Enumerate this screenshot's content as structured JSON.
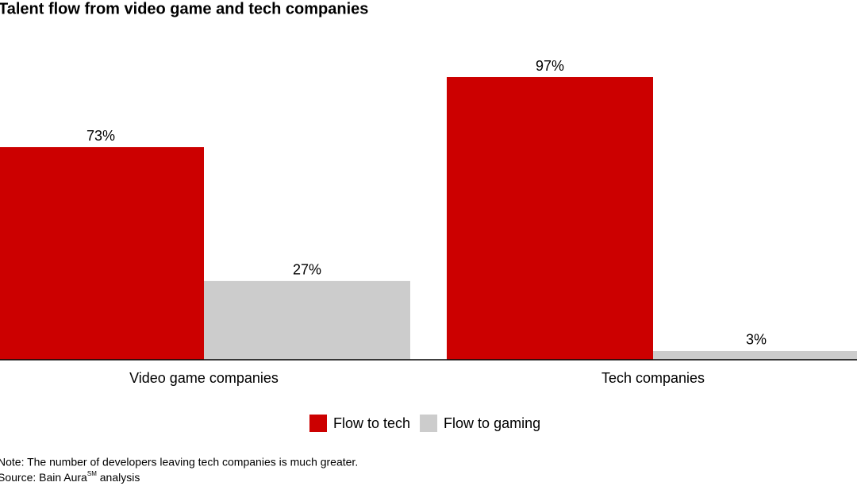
{
  "chart_data": {
    "type": "bar",
    "title": "Talent flow from video game and tech companies",
    "categories": [
      "Video game companies",
      "Tech companies"
    ],
    "series": [
      {
        "name": "Flow to tech",
        "color": "#cc0000",
        "values": [
          73,
          97
        ],
        "value_labels": [
          "73%",
          "97%"
        ]
      },
      {
        "name": "Flow to gaming",
        "color": "#cccccc",
        "values": [
          27,
          3
        ],
        "value_labels": [
          "27%",
          "3%"
        ]
      }
    ],
    "ylim": [
      0,
      100
    ],
    "note": "Note: The number of developers leaving tech companies is much greater.",
    "source": {
      "prefix": "Source: Bain Aura",
      "superscript": "SM",
      "suffix": " analysis"
    }
  }
}
